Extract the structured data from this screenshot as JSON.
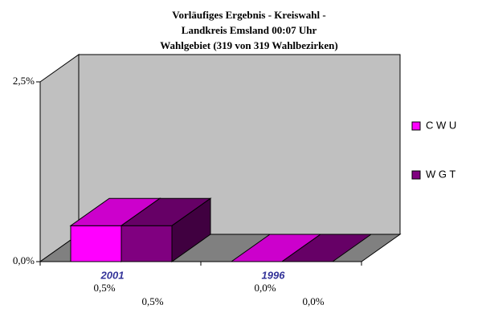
{
  "chart_data": {
    "type": "bar3d",
    "title": [
      "Vorläufiges Ergebnis  - Kreiswahl -",
      "Landkreis Emsland     00:07 Uhr",
      "Wahlgebiet (319 von 319 Wahlbezirken)"
    ],
    "categories": [
      "2001",
      "1996"
    ],
    "series": [
      {
        "name": "C W U",
        "color": "#ff00ff",
        "values": [
          0.5,
          0.0
        ],
        "value_labels": [
          "0,5%",
          "0,0%"
        ]
      },
      {
        "name": "W G T",
        "color": "#800080",
        "values": [
          0.5,
          0.0
        ],
        "value_labels": [
          "0,5%",
          "0,0%"
        ]
      }
    ],
    "ylim": [
      0,
      2.5
    ],
    "yticks": [
      {
        "value": 0,
        "label": "0,0%"
      },
      {
        "value": 2.5,
        "label": "2,5%"
      }
    ],
    "legend": "right"
  }
}
